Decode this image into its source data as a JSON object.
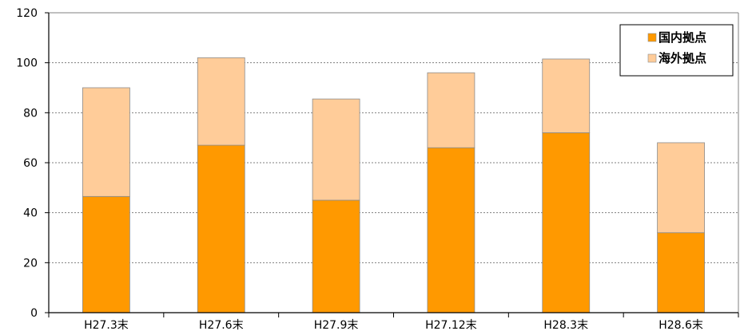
{
  "chart_data": {
    "type": "bar",
    "stacked": true,
    "title": "",
    "xlabel": "",
    "ylabel": "",
    "ylim": [
      0,
      120
    ],
    "yticks": [
      0,
      20,
      40,
      60,
      80,
      100,
      120
    ],
    "grid": "horizontal dashed",
    "legend_position": "top-right",
    "categories": [
      "H27.3末",
      "H27.6末",
      "H27.9末",
      "H27.12末",
      "H28.3末",
      "H28.6末"
    ],
    "series": [
      {
        "name": "国内拠点",
        "color": "#FF9900",
        "values": [
          46.5,
          67,
          45,
          66,
          72,
          32
        ]
      },
      {
        "name": "海外拠点",
        "color": "#FFCC99",
        "values": [
          43.5,
          35,
          40.5,
          30,
          29.5,
          36
        ]
      }
    ]
  }
}
